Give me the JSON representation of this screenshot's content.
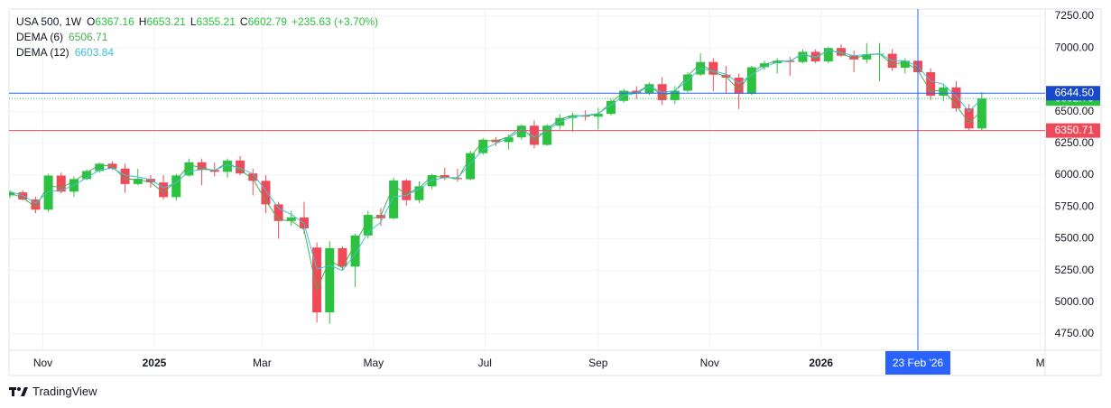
{
  "chart_data": {
    "type": "candlestick",
    "title": "USA 500, 1W",
    "ohlc_labels": [
      "O",
      "H",
      "L",
      "C"
    ],
    "change": "+235.63 (+3.70%)",
    "up_color": "#2bc23f",
    "down_color": "#f04a5a",
    "x": [
      "2024-10-14",
      "2024-10-21",
      "2024-10-28",
      "2024-11-04",
      "2024-11-11",
      "2024-11-18",
      "2024-11-25",
      "2024-12-02",
      "2024-12-09",
      "2024-12-16",
      "2024-12-23",
      "2024-12-30",
      "2025-01-06",
      "2025-01-13",
      "2025-01-20",
      "2025-01-27",
      "2025-02-03",
      "2025-02-10",
      "2025-02-17",
      "2025-02-24",
      "2025-03-03",
      "2025-03-10",
      "2025-03-17",
      "2025-03-24",
      "2025-03-31",
      "2025-04-07",
      "2025-04-14",
      "2025-04-21",
      "2025-04-28",
      "2025-05-05",
      "2025-05-12",
      "2025-05-19",
      "2025-05-26",
      "2025-06-02",
      "2025-06-09",
      "2025-06-16",
      "2025-06-23",
      "2025-06-30",
      "2025-07-07",
      "2025-07-14",
      "2025-07-21",
      "2025-07-28",
      "2025-08-04",
      "2025-08-11",
      "2025-08-18",
      "2025-08-25",
      "2025-09-01",
      "2025-09-08",
      "2025-09-15",
      "2025-09-22",
      "2025-09-29",
      "2025-10-06",
      "2025-10-13",
      "2025-10-20",
      "2025-10-27",
      "2025-11-03",
      "2025-11-10",
      "2025-11-17",
      "2025-11-24",
      "2025-12-01",
      "2025-12-08",
      "2025-12-15",
      "2025-12-22",
      "2025-12-29",
      "2026-01-05",
      "2026-01-12",
      "2026-01-19",
      "2026-01-26",
      "2026-02-02",
      "2026-02-09",
      "2026-02-16",
      "2026-02-23",
      "2026-03-02",
      "2026-03-09",
      "2026-03-16",
      "2026-03-23",
      "2026-03-30"
    ],
    "open": [
      5840,
      5864,
      5808,
      5728,
      5996,
      5870,
      5969,
      6032,
      6090,
      6051,
      5930,
      5971,
      5942,
      5827,
      5997,
      6101,
      6041,
      6026,
      6115,
      6013,
      5955,
      5770,
      5639,
      5667,
      5430,
      4920,
      5425,
      5280,
      5525,
      5687,
      5660,
      5958,
      5803,
      5912,
      6000,
      5977,
      5968,
      6173,
      6279,
      6260,
      6297,
      6389,
      6238,
      6389,
      6450,
      6467,
      6460,
      6482,
      6584,
      6664,
      6644,
      6716,
      6590,
      6664,
      6792,
      6890,
      6790,
      6767,
      6640,
      6849,
      6880,
      6900,
      6890,
      6970,
      6895,
      7000,
      6940,
      6910,
      6950,
      6955,
      6845,
      6900,
      6810,
      6625,
      6690,
      6525,
      6367.16
    ],
    "high": [
      5880,
      5880,
      5830,
      6010,
      6020,
      5990,
      6045,
      6100,
      6110,
      6090,
      6050,
      6000,
      6000,
      6010,
      6130,
      6130,
      6100,
      6130,
      6150,
      6050,
      6000,
      5790,
      5720,
      5790,
      5470,
      5480,
      5440,
      5540,
      5720,
      5740,
      5980,
      5970,
      5950,
      6010,
      6060,
      6050,
      6190,
      6290,
      6300,
      6320,
      6400,
      6430,
      6400,
      6480,
      6490,
      6510,
      6530,
      6600,
      6680,
      6700,
      6730,
      6770,
      6700,
      6810,
      6960,
      6920,
      6860,
      6800,
      6860,
      6900,
      6920,
      6930,
      6990,
      6990,
      7010,
      7030,
      6980,
      7040,
      7040,
      6990,
      6920,
      6920,
      6840,
      6720,
      6740,
      6560,
      6653.21
    ],
    "low": [
      5820,
      5800,
      5700,
      5710,
      5855,
      5830,
      5960,
      6020,
      6040,
      5860,
      5920,
      5900,
      5810,
      5800,
      5990,
      5920,
      5990,
      5980,
      6000,
      5840,
      5700,
      5500,
      5600,
      5540,
      4840,
      4830,
      5250,
      5120,
      5500,
      5600,
      5650,
      5760,
      5780,
      5890,
      5960,
      5950,
      5960,
      6160,
      6230,
      6200,
      6280,
      6210,
      6230,
      6360,
      6340,
      6430,
      6360,
      6470,
      6570,
      6600,
      6630,
      6550,
      6560,
      6650,
      6780,
      6660,
      6640,
      6520,
      6630,
      6830,
      6800,
      6780,
      6880,
      6880,
      6880,
      6930,
      6810,
      6880,
      6740,
      6820,
      6800,
      6780,
      6590,
      6580,
      6500,
      6350,
      6355.21
    ],
    "close": [
      5864,
      5808,
      5728,
      5996,
      5870,
      5969,
      6032,
      6090,
      6051,
      5930,
      5971,
      5942,
      5827,
      5997,
      6101,
      6041,
      6026,
      6115,
      6013,
      5955,
      5770,
      5639,
      5667,
      5581,
      4920,
      5425,
      5280,
      5525,
      5687,
      5660,
      5958,
      5803,
      5912,
      6000,
      5977,
      5968,
      6173,
      6279,
      6260,
      6297,
      6389,
      6238,
      6389,
      6450,
      6467,
      6460,
      6482,
      6584,
      6664,
      6644,
      6716,
      6590,
      6664,
      6792,
      6890,
      6790,
      6767,
      6640,
      6849,
      6880,
      6900,
      6890,
      6970,
      6895,
      7000,
      6940,
      6910,
      6950,
      6955,
      6845,
      6900,
      6810,
      6625,
      6690,
      6525,
      6367.16,
      6602.79
    ],
    "series": [
      {
        "name": "DEMA (6)",
        "color": "#4caf50",
        "values": [
          5860,
          5820,
          5750,
          5920,
          5900,
          5950,
          6020,
          6080,
          6070,
          5970,
          5965,
          5945,
          5860,
          5960,
          6080,
          6060,
          6035,
          6100,
          6040,
          5970,
          5800,
          5650,
          5640,
          5570,
          5100,
          5330,
          5270,
          5460,
          5650,
          5680,
          5920,
          5850,
          5900,
          5990,
          5985,
          5970,
          6140,
          6270,
          6270,
          6300,
          6385,
          6270,
          6360,
          6440,
          6470,
          6465,
          6480,
          6570,
          6655,
          6650,
          6710,
          6620,
          6660,
          6780,
          6880,
          6810,
          6775,
          6670,
          6810,
          6870,
          6900,
          6895,
          6960,
          6915,
          6990,
          6955,
          6920,
          6945,
          6955,
          6870,
          6890,
          6825,
          6660,
          6670,
          6550,
          6410,
          6506.71
        ]
      },
      {
        "name": "DEMA (12)",
        "color": "#3fc1d3",
        "values": [
          5870,
          5840,
          5780,
          5870,
          5880,
          5920,
          5980,
          6040,
          6055,
          6000,
          5985,
          5965,
          5900,
          5940,
          6030,
          6045,
          6040,
          6080,
          6055,
          6010,
          5880,
          5740,
          5690,
          5620,
          5260,
          5290,
          5250,
          5380,
          5550,
          5630,
          5830,
          5840,
          5890,
          5960,
          5980,
          5980,
          6090,
          6200,
          6250,
          6290,
          6360,
          6300,
          6350,
          6420,
          6460,
          6470,
          6485,
          6550,
          6625,
          6645,
          6700,
          6650,
          6665,
          6745,
          6840,
          6820,
          6795,
          6720,
          6790,
          6850,
          6890,
          6900,
          6950,
          6930,
          6980,
          6965,
          6940,
          6950,
          6955,
          6900,
          6900,
          6855,
          6740,
          6715,
          6620,
          6500,
          6603.84
        ]
      }
    ],
    "ylim": [
      4622,
      7307
    ],
    "yticks": [
      {
        "value": 4750,
        "label": "4750.00"
      },
      {
        "value": 5000,
        "label": "5000.00"
      },
      {
        "value": 5250,
        "label": "5250.00"
      },
      {
        "value": 5500,
        "label": "5500.00"
      },
      {
        "value": 5750,
        "label": "5750.00"
      },
      {
        "value": 6000,
        "label": "6000.00"
      },
      {
        "value": 6250,
        "label": "6250.00"
      },
      {
        "value": 6500,
        "label": "6500.00"
      },
      {
        "value": 7000,
        "label": "7000.00"
      },
      {
        "value": 7250,
        "label": "7250.00"
      }
    ],
    "xticks": [
      {
        "value": "2024-11-01",
        "label": "Nov"
      },
      {
        "value": "2025-01-01",
        "label": "2025"
      },
      {
        "value": "2025-03-01",
        "label": "Mar"
      },
      {
        "value": "2025-05-01",
        "label": "May"
      },
      {
        "value": "2025-07-01",
        "label": "Jul"
      },
      {
        "value": "2025-09-01",
        "label": "Sep"
      },
      {
        "value": "2025-11-01",
        "label": "Nov"
      },
      {
        "value": "2026-01-01",
        "label": "2026"
      },
      {
        "value": "2026-05-01",
        "label": "M"
      }
    ],
    "grid": true,
    "price_line": 6350.71,
    "crosshair": {
      "x": "2026-02-23",
      "x_label": "23 Feb '26",
      "price": {
        "value": 6644.5,
        "label": "6644.50"
      }
    }
  },
  "logo": "TradingView"
}
